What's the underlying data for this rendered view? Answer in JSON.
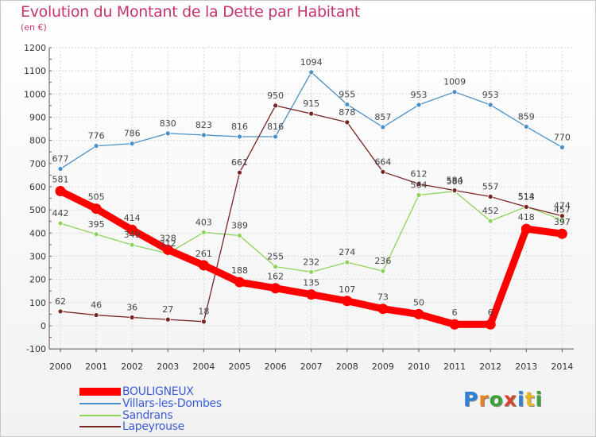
{
  "header": {
    "title": "Evolution du Montant de la Dette par Habitant",
    "subtitle": "(en €)"
  },
  "logo": {
    "text": "Proxiti",
    "letter_colors": [
      "#2f7fd6",
      "#e8821e",
      "#3aa23a",
      "#d8452e",
      "#2f7fd6",
      "#e8b81e",
      "#3aa23a"
    ]
  },
  "chart_data": {
    "type": "line",
    "title": "Evolution du Montant de la Dette par Habitant",
    "subtitle": "(en €)",
    "x": [
      "2000",
      "2001",
      "2002",
      "2003",
      "2004",
      "2005",
      "2006",
      "2007",
      "2008",
      "2009",
      "2010",
      "2011",
      "2012",
      "2013",
      "2014"
    ],
    "y_ticks": [
      -100,
      0,
      100,
      200,
      300,
      400,
      500,
      600,
      700,
      800,
      900,
      1000,
      1100,
      1200
    ],
    "ylim": [
      -100,
      1200
    ],
    "grid": true,
    "legend_position": "bottom-left",
    "series": [
      {
        "name": "BOULIGNEUX",
        "color": "#ff0000",
        "emphasis": true,
        "values": [
          581,
          505,
          414,
          328,
          261,
          188,
          162,
          135,
          107,
          73,
          50,
          6,
          6,
          418,
          397
        ],
        "labels": [
          "581",
          "505",
          "414",
          "328",
          "261",
          "188",
          "162",
          "135",
          "107",
          "73",
          "50",
          "6",
          "6",
          "418",
          "397"
        ]
      },
      {
        "name": "Villars-les-Dombes",
        "color": "#4a90c8",
        "emphasis": false,
        "values": [
          677,
          776,
          786,
          830,
          823,
          816,
          816,
          1094,
          955,
          857,
          953,
          1009,
          953,
          859,
          770
        ],
        "labels": [
          "677",
          "776",
          "786",
          "830",
          "823",
          "816",
          "816",
          "1094",
          "955",
          "857",
          "953",
          "1009",
          "953",
          "859",
          "770"
        ]
      },
      {
        "name": "Sandrans",
        "color": "#8fd35a",
        "emphasis": false,
        "values": [
          442,
          395,
          349,
          312,
          403,
          389,
          255,
          232,
          274,
          236,
          564,
          580,
          452,
          514,
          457
        ],
        "labels": [
          "442",
          "395",
          "349",
          "312",
          "403",
          "389",
          "255",
          "232",
          "274",
          "236",
          "564",
          "580",
          "452",
          "514",
          "457"
        ]
      },
      {
        "name": "Lapeyrouse",
        "color": "#7a2424",
        "emphasis": false,
        "values": [
          62,
          46,
          36,
          27,
          18,
          661,
          950,
          915,
          878,
          664,
          612,
          584,
          557,
          513,
          474
        ],
        "labels": [
          "62",
          "46",
          "36",
          "27",
          "18",
          "661",
          "950",
          "915",
          "878",
          "664",
          "612",
          "584",
          "557",
          "513",
          "474"
        ]
      }
    ]
  }
}
